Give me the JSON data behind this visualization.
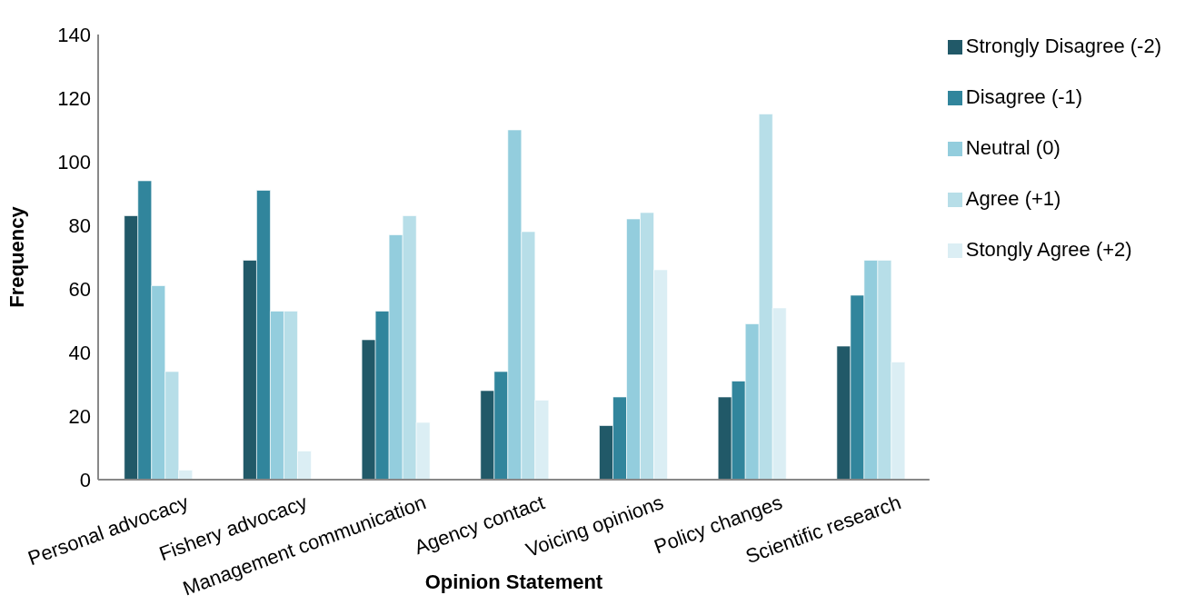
{
  "chart_data": {
    "type": "bar",
    "xlabel": "Opinion Statement",
    "ylabel": "Frequency",
    "categories": [
      "Personal advocacy",
      "Fishery advocacy",
      "Management communication",
      "Agency contact",
      "Voicing opinions",
      "Policy changes",
      "Scientific research"
    ],
    "series": [
      {
        "name": "Strongly Disagree (-2)",
        "color": "#215968",
        "values": [
          83,
          69,
          44,
          28,
          17,
          26,
          42
        ]
      },
      {
        "name": "Disagree (-1)",
        "color": "#31859c",
        "values": [
          94,
          91,
          53,
          34,
          26,
          31,
          58
        ]
      },
      {
        "name": "Neutral (0)",
        "color": "#93cddd",
        "values": [
          61,
          53,
          77,
          110,
          82,
          49,
          69
        ]
      },
      {
        "name": "Agree (+1)",
        "color": "#b7dee8",
        "values": [
          34,
          53,
          83,
          78,
          84,
          115,
          69
        ]
      },
      {
        "name": "Stongly Agree (+2)",
        "color": "#dbeef4",
        "values": [
          3,
          9,
          18,
          25,
          66,
          54,
          37
        ]
      }
    ],
    "ylim": [
      0,
      140
    ],
    "yticks": [
      0,
      20,
      40,
      60,
      80,
      100,
      120,
      140
    ],
    "grid": false,
    "legend": "top right"
  }
}
